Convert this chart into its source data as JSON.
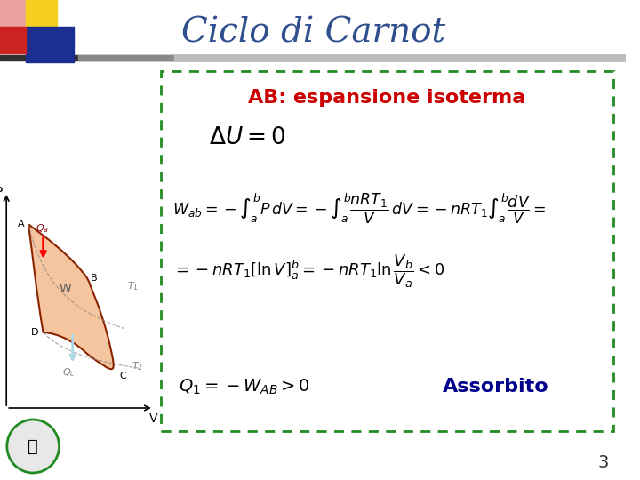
{
  "title": "Ciclo di Carnot",
  "title_color": "#2F4F8F",
  "title_fontsize": 28,
  "bg_color": "#FFFFFF",
  "header_bar_color": "#404040",
  "slide_number": "3",
  "box_border_color": "#228B22",
  "subtitle": "AB: espansione isoterma",
  "subtitle_color": "#CC0000",
  "subtitle_fontsize": 16,
  "assorbito_color": "#00008B",
  "assorbito_fontsize": 16,
  "formula_color": "#000000",
  "eq1": "$\\Delta U = 0$",
  "eq2": "$W_{ab} = -\\int_a^b P\\,dV = -\\int_a^b \\frac{nRT_1}{V}\\,dV = -nRT_1\\int_a^b \\frac{dV}{V} =$",
  "eq3": "$= -nRT_1\\left[\\ln V\\right]_a^b = -nRT_1 \\ln \\frac{V_b}{V_a} < 0$",
  "eq4": "$Q_1 = -W_{AB} > 0$",
  "assorbito_text": "Assorbito"
}
